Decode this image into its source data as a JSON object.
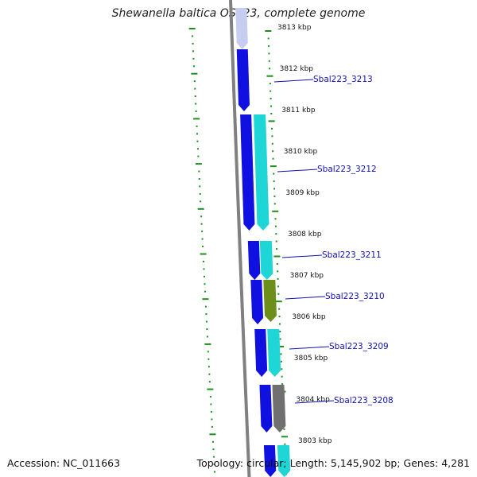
{
  "title": "Shewanella baltica OS223, complete genome",
  "accession": "Accession: NC_011663",
  "summary": "Topology: circular; Length: 5,145,902 bp; Genes: 4,281",
  "colors": {
    "cds_dark": "#1010e0",
    "cds_light": "#1fd6d6",
    "cds_olive": "#6d8f1a",
    "cds_gray": "#707070",
    "backbone": "#808080",
    "tick": "#1a8f1a",
    "label": "#1010b0"
  },
  "scale_labels": [
    "3813 kbp",
    "3812 kbp",
    "3811 kbp",
    "3810 kbp",
    "3809 kbp",
    "3808 kbp",
    "3807 kbp",
    "3806 kbp",
    "3805 kbp",
    "3804 kbp",
    "3803 kbp"
  ],
  "gene_labels": [
    "Sbal223_3213",
    "Sbal223_3212",
    "Sbal223_3211",
    "Sbal223_3210",
    "Sbal223_3209",
    "Sbal223_3208"
  ]
}
